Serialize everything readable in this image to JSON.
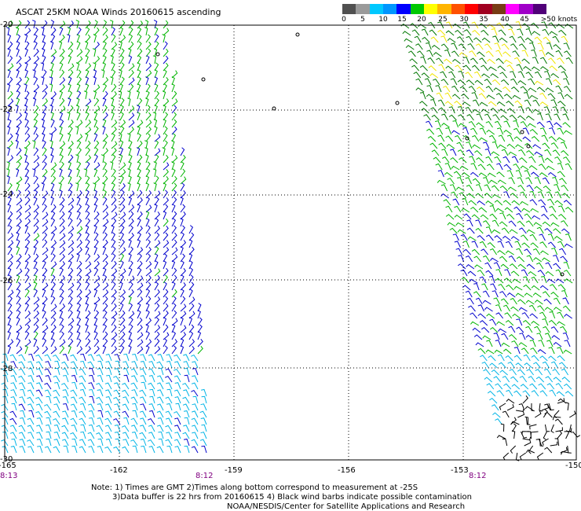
{
  "title": "ASCAT 25KM NOAA Winds 20160615 ascending",
  "legend": {
    "labels": [
      "0",
      "5",
      "10",
      "15",
      "20",
      "25",
      "30",
      "35",
      "40",
      "45",
      ">50 knots"
    ],
    "colors": [
      "#505050",
      "#9a9a9a",
      "#00c8ff",
      "#0096ff",
      "#0000ff",
      "#00c800",
      "#ffff00",
      "#ffb400",
      "#ff5000",
      "#ff0000",
      "#a00020",
      "#783c14",
      "#ff00ff",
      "#a000c8",
      "#500078"
    ]
  },
  "axes": {
    "x_ticks": [
      "-165",
      "-162",
      "-159",
      "-156",
      "-153",
      "-150"
    ],
    "y_ticks": [
      "-20",
      "-22",
      "-24",
      "-26",
      "-28",
      "-30"
    ],
    "lon_range": [
      -165,
      -150
    ],
    "lat_range": [
      -30,
      -20
    ]
  },
  "time_labels": [
    "8:13",
    "8:12",
    "8:12"
  ],
  "notes": [
    "Note: 1) Times are GMT 2)Times along bottom correspond to measurement at -25S",
    "3)Data buffer is 22 hrs from 20160615 4) Black wind barbs indicate possible contamination",
    "NOAA/NESDIS/Center for Satellite Applications and Research"
  ],
  "colors": {
    "speed_10_15": "#0000cd",
    "speed_5_10": "#00b4e6",
    "speed_15_20": "#00b400",
    "speed_20_25": "#f0e600",
    "contaminated": "#000000",
    "time_label": "#800080"
  }
}
